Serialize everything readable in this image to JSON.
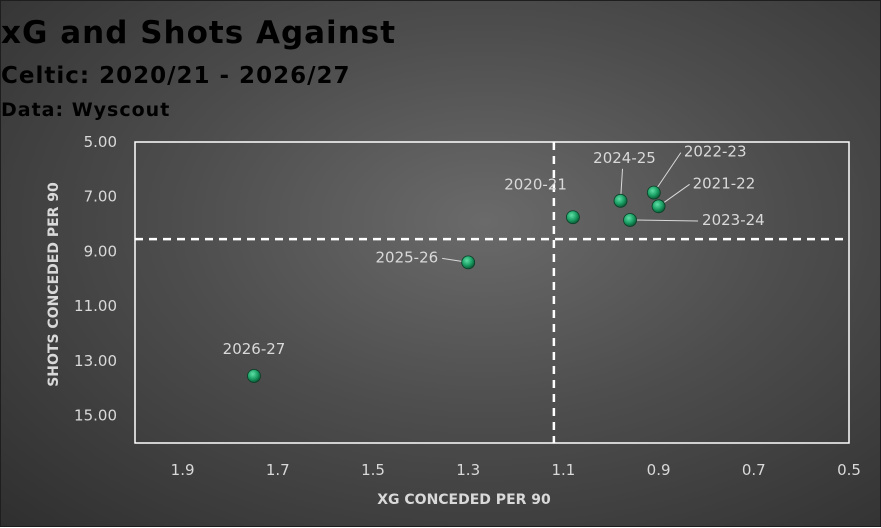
{
  "chart_data": {
    "type": "scatter",
    "title": "xG and Shots Against",
    "subtitle": "Celtic: 2020/21 - 2026/27",
    "source": "Data: Wyscout",
    "xlabel": "XG CONCEDED PER 90",
    "ylabel": "SHOTS CONCEDED PER 90",
    "xlim": [
      2.0,
      0.5
    ],
    "ylim": [
      5.0,
      16.0
    ],
    "x_reversed": true,
    "y_reversed": true,
    "x_ticks": [
      "1.9",
      "1.7",
      "1.5",
      "1.3",
      "1.1",
      "0.9",
      "0.7",
      "0.5"
    ],
    "x_tick_values": [
      1.9,
      1.7,
      1.5,
      1.3,
      1.1,
      0.9,
      0.7,
      0.5
    ],
    "y_ticks": [
      "5.00",
      "7.00",
      "9.00",
      "11.00",
      "13.00",
      "15.00"
    ],
    "y_tick_values": [
      5,
      7,
      9,
      11,
      13,
      15
    ],
    "grid": false,
    "reference_lines": {
      "x": 1.12,
      "y": 8.55
    },
    "point_color": "#1a9e63",
    "reference_line_color": "#ffffff",
    "points": [
      {
        "label": "2020-21",
        "x": 1.08,
        "y": 7.75
      },
      {
        "label": "2021-22",
        "x": 0.9,
        "y": 7.35
      },
      {
        "label": "2022-23",
        "x": 0.91,
        "y": 6.85
      },
      {
        "label": "2023-24",
        "x": 0.96,
        "y": 7.85
      },
      {
        "label": "2024-25",
        "x": 0.98,
        "y": 7.15
      },
      {
        "label": "2025-26",
        "x": 1.3,
        "y": 9.4
      },
      {
        "label": "2026-27",
        "x": 1.75,
        "y": 13.55
      }
    ]
  }
}
